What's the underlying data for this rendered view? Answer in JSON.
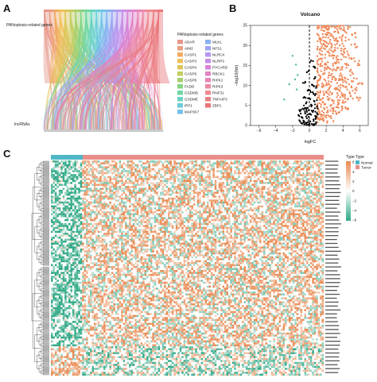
{
  "panels": {
    "a_label": "A",
    "b_label": "B",
    "c_label": "C"
  },
  "sankey": {
    "top_axis_label": "PANoptosis-related genes",
    "bottom_axis_label": "lncRNAs",
    "legend_title": "PANoptosis-related genes",
    "genes": [
      {
        "name": "ADAR",
        "color": "#e7968a"
      },
      {
        "name": "AIM2",
        "color": "#ec9e80"
      },
      {
        "name": "CASP1",
        "color": "#f0aa5f"
      },
      {
        "name": "CASP3",
        "color": "#eec15a"
      },
      {
        "name": "CASP4",
        "color": "#dcc65a"
      },
      {
        "name": "CASP6",
        "color": "#c3cd5f"
      },
      {
        "name": "CASP8",
        "color": "#a7d06d"
      },
      {
        "name": "FADD",
        "color": "#86d486"
      },
      {
        "name": "GSDMD",
        "color": "#6fd6a2"
      },
      {
        "name": "GSDME",
        "color": "#67d3c0"
      },
      {
        "name": "IRF1",
        "color": "#6acdd8"
      },
      {
        "name": "MAP3K7",
        "color": "#74c2e8"
      },
      {
        "name": "MLKL",
        "color": "#86b3f0"
      },
      {
        "name": "NFS1",
        "color": "#9ea4f2"
      },
      {
        "name": "NLRC4",
        "color": "#b597ef"
      },
      {
        "name": "NLRP3",
        "color": "#c78ce6"
      },
      {
        "name": "PYCARD",
        "color": "#d585d8"
      },
      {
        "name": "RBCK1",
        "color": "#e182c7"
      },
      {
        "name": "RIPK1",
        "color": "#e884b5"
      },
      {
        "name": "RIPK3",
        "color": "#ec88a3"
      },
      {
        "name": "RNF31",
        "color": "#ed8c93"
      },
      {
        "name": "TNFAIP3",
        "color": "#eb7f86"
      },
      {
        "name": "ZBP1",
        "color": "#e9757a"
      }
    ]
  },
  "heatmap": {
    "group_legend_title": "Type",
    "group_normal": "Normal",
    "group_tumor": "Tumor",
    "group_normal_color": "#4fb6c6",
    "group_tumor_color": "#ea8e8a",
    "value_legend_title": "Type",
    "value_ticks": [
      "6",
      "4",
      "2",
      "0",
      "−2",
      "−4",
      "−6"
    ],
    "high_color": "#e98a52",
    "mid_color": "#ffffff",
    "low_color": "#2fa886"
  },
  "chart_data": {
    "type": "scatter",
    "title": "Volcano",
    "xlabel": "logFC",
    "ylabel": "−log10(fdr)",
    "xlim": [
      -7,
      7
    ],
    "ylim": [
      0,
      25
    ],
    "xticks": [
      "−6",
      "−4",
      "−2",
      "0",
      "2",
      "4",
      "6"
    ],
    "yticks": [
      "0",
      "5",
      "10",
      "15",
      "20",
      "25"
    ],
    "threshold_x": 0,
    "series": [
      {
        "color": "#f08a5a"
      },
      {
        "color": "#000000"
      },
      {
        "color": "#4fb99a"
      }
    ],
    "points": {
      "up": [
        [
          1.2,
          24.5
        ],
        [
          1.5,
          24.8
        ],
        [
          2.0,
          24.6
        ],
        [
          2.6,
          24.7
        ],
        [
          3.1,
          24.4
        ],
        [
          1.8,
          23.6
        ],
        [
          2.3,
          23.2
        ],
        [
          3.4,
          23.5
        ],
        [
          4.0,
          23.8
        ],
        [
          1.1,
          22.5
        ],
        [
          1.6,
          22.1
        ],
        [
          2.5,
          22.4
        ],
        [
          2.9,
          21.8
        ],
        [
          3.6,
          22.0
        ],
        [
          4.3,
          21.2
        ],
        [
          1.3,
          20.9
        ],
        [
          2.1,
          20.6
        ],
        [
          2.7,
          20.1
        ],
        [
          3.3,
          20.4
        ],
        [
          1.0,
          19.7
        ],
        [
          1.7,
          19.3
        ],
        [
          2.4,
          19.0
        ],
        [
          3.0,
          18.8
        ],
        [
          3.8,
          19.2
        ],
        [
          4.5,
          18.5
        ],
        [
          1.2,
          18.1
        ],
        [
          1.9,
          17.7
        ],
        [
          2.6,
          17.4
        ],
        [
          3.2,
          17.0
        ],
        [
          4.1,
          17.2
        ],
        [
          5.0,
          16.8
        ],
        [
          1.1,
          16.5
        ],
        [
          1.5,
          16.0
        ],
        [
          2.2,
          15.8
        ],
        [
          2.8,
          15.4
        ],
        [
          3.5,
          15.7
        ],
        [
          4.4,
          15.1
        ],
        [
          1.3,
          14.8
        ],
        [
          1.8,
          14.4
        ],
        [
          2.5,
          14.1
        ],
        [
          3.1,
          13.8
        ],
        [
          3.9,
          14.0
        ],
        [
          4.8,
          13.5
        ],
        [
          1.0,
          13.2
        ],
        [
          1.6,
          12.8
        ],
        [
          2.3,
          12.5
        ],
        [
          2.9,
          12.2
        ],
        [
          3.6,
          12.4
        ],
        [
          4.2,
          12.0
        ],
        [
          5.3,
          11.8
        ],
        [
          1.2,
          11.6
        ],
        [
          1.9,
          11.2
        ],
        [
          2.6,
          10.9
        ],
        [
          3.3,
          10.6
        ],
        [
          4.0,
          10.8
        ],
        [
          4.7,
          10.3
        ],
        [
          1.1,
          10.1
        ],
        [
          1.7,
          9.8
        ],
        [
          2.4,
          9.5
        ],
        [
          3.0,
          9.2
        ],
        [
          3.7,
          9.4
        ],
        [
          4.5,
          9.0
        ],
        [
          5.6,
          8.8
        ],
        [
          1.3,
          8.6
        ],
        [
          2.0,
          8.2
        ],
        [
          2.7,
          7.9
        ],
        [
          3.4,
          7.6
        ],
        [
          4.1,
          7.8
        ],
        [
          4.9,
          7.3
        ],
        [
          1.0,
          7.0
        ],
        [
          1.6,
          6.7
        ],
        [
          2.3,
          6.4
        ],
        [
          2.9,
          6.1
        ],
        [
          3.6,
          6.3
        ],
        [
          4.3,
          5.9
        ],
        [
          6.0,
          6.8
        ],
        [
          1.2,
          5.6
        ],
        [
          1.8,
          5.2
        ],
        [
          2.5,
          4.9
        ],
        [
          3.2,
          4.6
        ],
        [
          3.9,
          4.8
        ],
        [
          4.6,
          4.3
        ],
        [
          1.1,
          4.0
        ],
        [
          1.5,
          3.6
        ],
        [
          2.2,
          3.3
        ],
        [
          2.8,
          3.0
        ],
        [
          3.5,
          3.2
        ],
        [
          1.0,
          2.7
        ],
        [
          1.4,
          2.3
        ],
        [
          2.0,
          2.0
        ],
        [
          2.6,
          1.8
        ],
        [
          1.2,
          1.4
        ],
        [
          1.7,
          1.1
        ],
        [
          5.4,
          20.2
        ],
        [
          5.8,
          15.5
        ],
        [
          6.2,
          10.6
        ],
        [
          4.6,
          24.1
        ],
        [
          3.7,
          24.9
        ],
        [
          2.2,
          24.9
        ],
        [
          1.4,
          21.4
        ],
        [
          5.1,
          22.6
        ]
      ],
      "down": [
        [
          -2.0,
          17.4
        ],
        [
          -1.6,
          15.2
        ],
        [
          -1.4,
          12.6
        ],
        [
          -1.7,
          11.5
        ],
        [
          -2.4,
          10.3
        ],
        [
          -1.5,
          9.0
        ],
        [
          -3.0,
          6.5
        ]
      ],
      "ns": [
        [
          0.2,
          16.2
        ],
        [
          0.5,
          14.7
        ],
        [
          -0.3,
          13.3
        ],
        [
          0.7,
          12.1
        ],
        [
          -0.5,
          10.9
        ],
        [
          0.3,
          10.2
        ],
        [
          0.8,
          9.4
        ],
        [
          -0.2,
          8.7
        ],
        [
          0.5,
          7.9
        ],
        [
          -0.6,
          7.1
        ],
        [
          0.1,
          6.6
        ],
        [
          0.6,
          6.0
        ],
        [
          -0.4,
          5.5
        ],
        [
          0.3,
          5.0
        ],
        [
          0.9,
          4.6
        ],
        [
          -0.8,
          4.2
        ],
        [
          -0.1,
          3.8
        ],
        [
          0.4,
          3.4
        ],
        [
          -0.5,
          3.0
        ],
        [
          0.2,
          2.7
        ],
        [
          0.7,
          2.4
        ],
        [
          -0.9,
          2.1
        ],
        [
          -0.3,
          1.8
        ],
        [
          0.5,
          1.5
        ],
        [
          -0.7,
          1.2
        ],
        [
          0.1,
          1.0
        ],
        [
          0.8,
          0.8
        ],
        [
          -0.4,
          0.6
        ],
        [
          0.3,
          0.4
        ],
        [
          -0.1,
          0.2
        ],
        [
          0.6,
          0.2
        ],
        [
          -0.6,
          0.3
        ],
        [
          0.0,
          0.1
        ],
        [
          -1.1,
          1.0
        ],
        [
          -1.3,
          2.6
        ],
        [
          -1.0,
          3.9
        ],
        [
          0.9,
          3.1
        ],
        [
          0.95,
          5.3
        ],
        [
          -0.2,
          4.4
        ],
        [
          0.4,
          8.3
        ]
      ]
    }
  }
}
